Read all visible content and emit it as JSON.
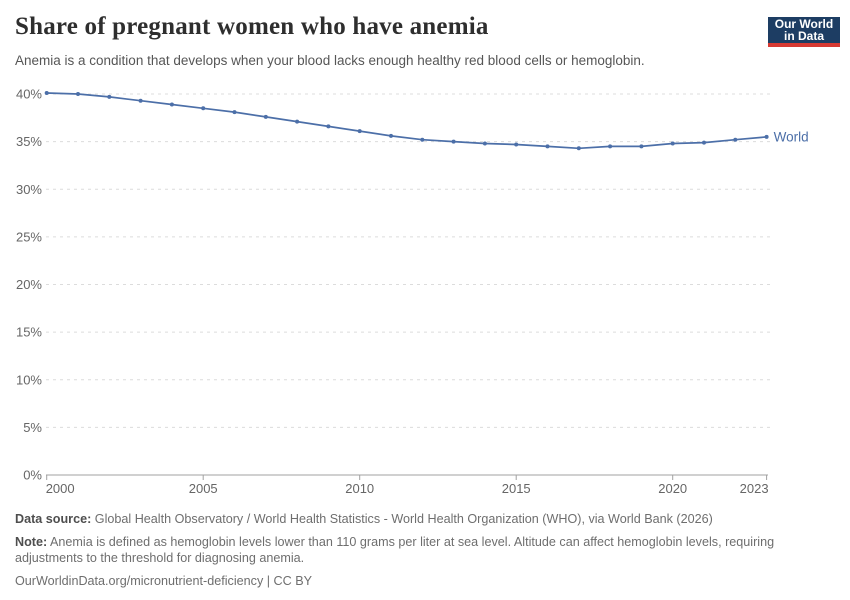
{
  "header": {
    "title": "Share of pregnant women who have anemia",
    "subtitle": "Anemia is a condition that develops when your blood lacks enough healthy red blood cells or hemoglobin.",
    "logo": {
      "line1": "Our World",
      "line2": "in Data"
    }
  },
  "chart_data": {
    "type": "line",
    "title": "Share of pregnant women who have anemia",
    "x": [
      2000,
      2001,
      2002,
      2003,
      2004,
      2005,
      2006,
      2007,
      2008,
      2009,
      2010,
      2011,
      2012,
      2013,
      2014,
      2015,
      2016,
      2017,
      2018,
      2019,
      2020,
      2021,
      2022,
      2023
    ],
    "series": [
      {
        "name": "World",
        "color": "#4c6fa8",
        "values": [
          40.1,
          40.0,
          39.7,
          39.3,
          38.9,
          38.5,
          38.1,
          37.6,
          37.1,
          36.6,
          36.1,
          35.6,
          35.2,
          35.0,
          34.8,
          34.7,
          34.5,
          34.3,
          34.5,
          34.5,
          34.8,
          34.9,
          35.2,
          35.5
        ]
      }
    ],
    "x_ticks": [
      2000,
      2005,
      2010,
      2015,
      2020,
      2023
    ],
    "y_ticks": [
      0,
      5,
      10,
      15,
      20,
      25,
      30,
      35,
      40
    ],
    "y_suffix": "%",
    "xlim": [
      2000,
      2023
    ],
    "ylim": [
      0,
      40
    ],
    "grid": "horizontal-dashed",
    "legend": "line-end-label"
  },
  "footer": {
    "data_source_label": "Data source:",
    "data_source": "Global Health Observatory / World Health Statistics - World Health Organization (WHO), via World Bank (2026)",
    "note_label": "Note:",
    "note": "Anemia is defined as hemoglobin levels lower than 110 grams per liter at sea level. Altitude can affect hemoglobin levels, requiring adjustments to the threshold for diagnosing anemia.",
    "citation": "OurWorldinData.org/micronutrient-deficiency | CC BY"
  },
  "colors": {
    "line": "#4c6fa8",
    "logo_background": "#1d3d63",
    "logo_accent": "#d73a33",
    "gridline": "#dcdcdc",
    "axis": "#a1a1a1",
    "title_text": "#2e2e2e",
    "tick_text": "#666666"
  }
}
